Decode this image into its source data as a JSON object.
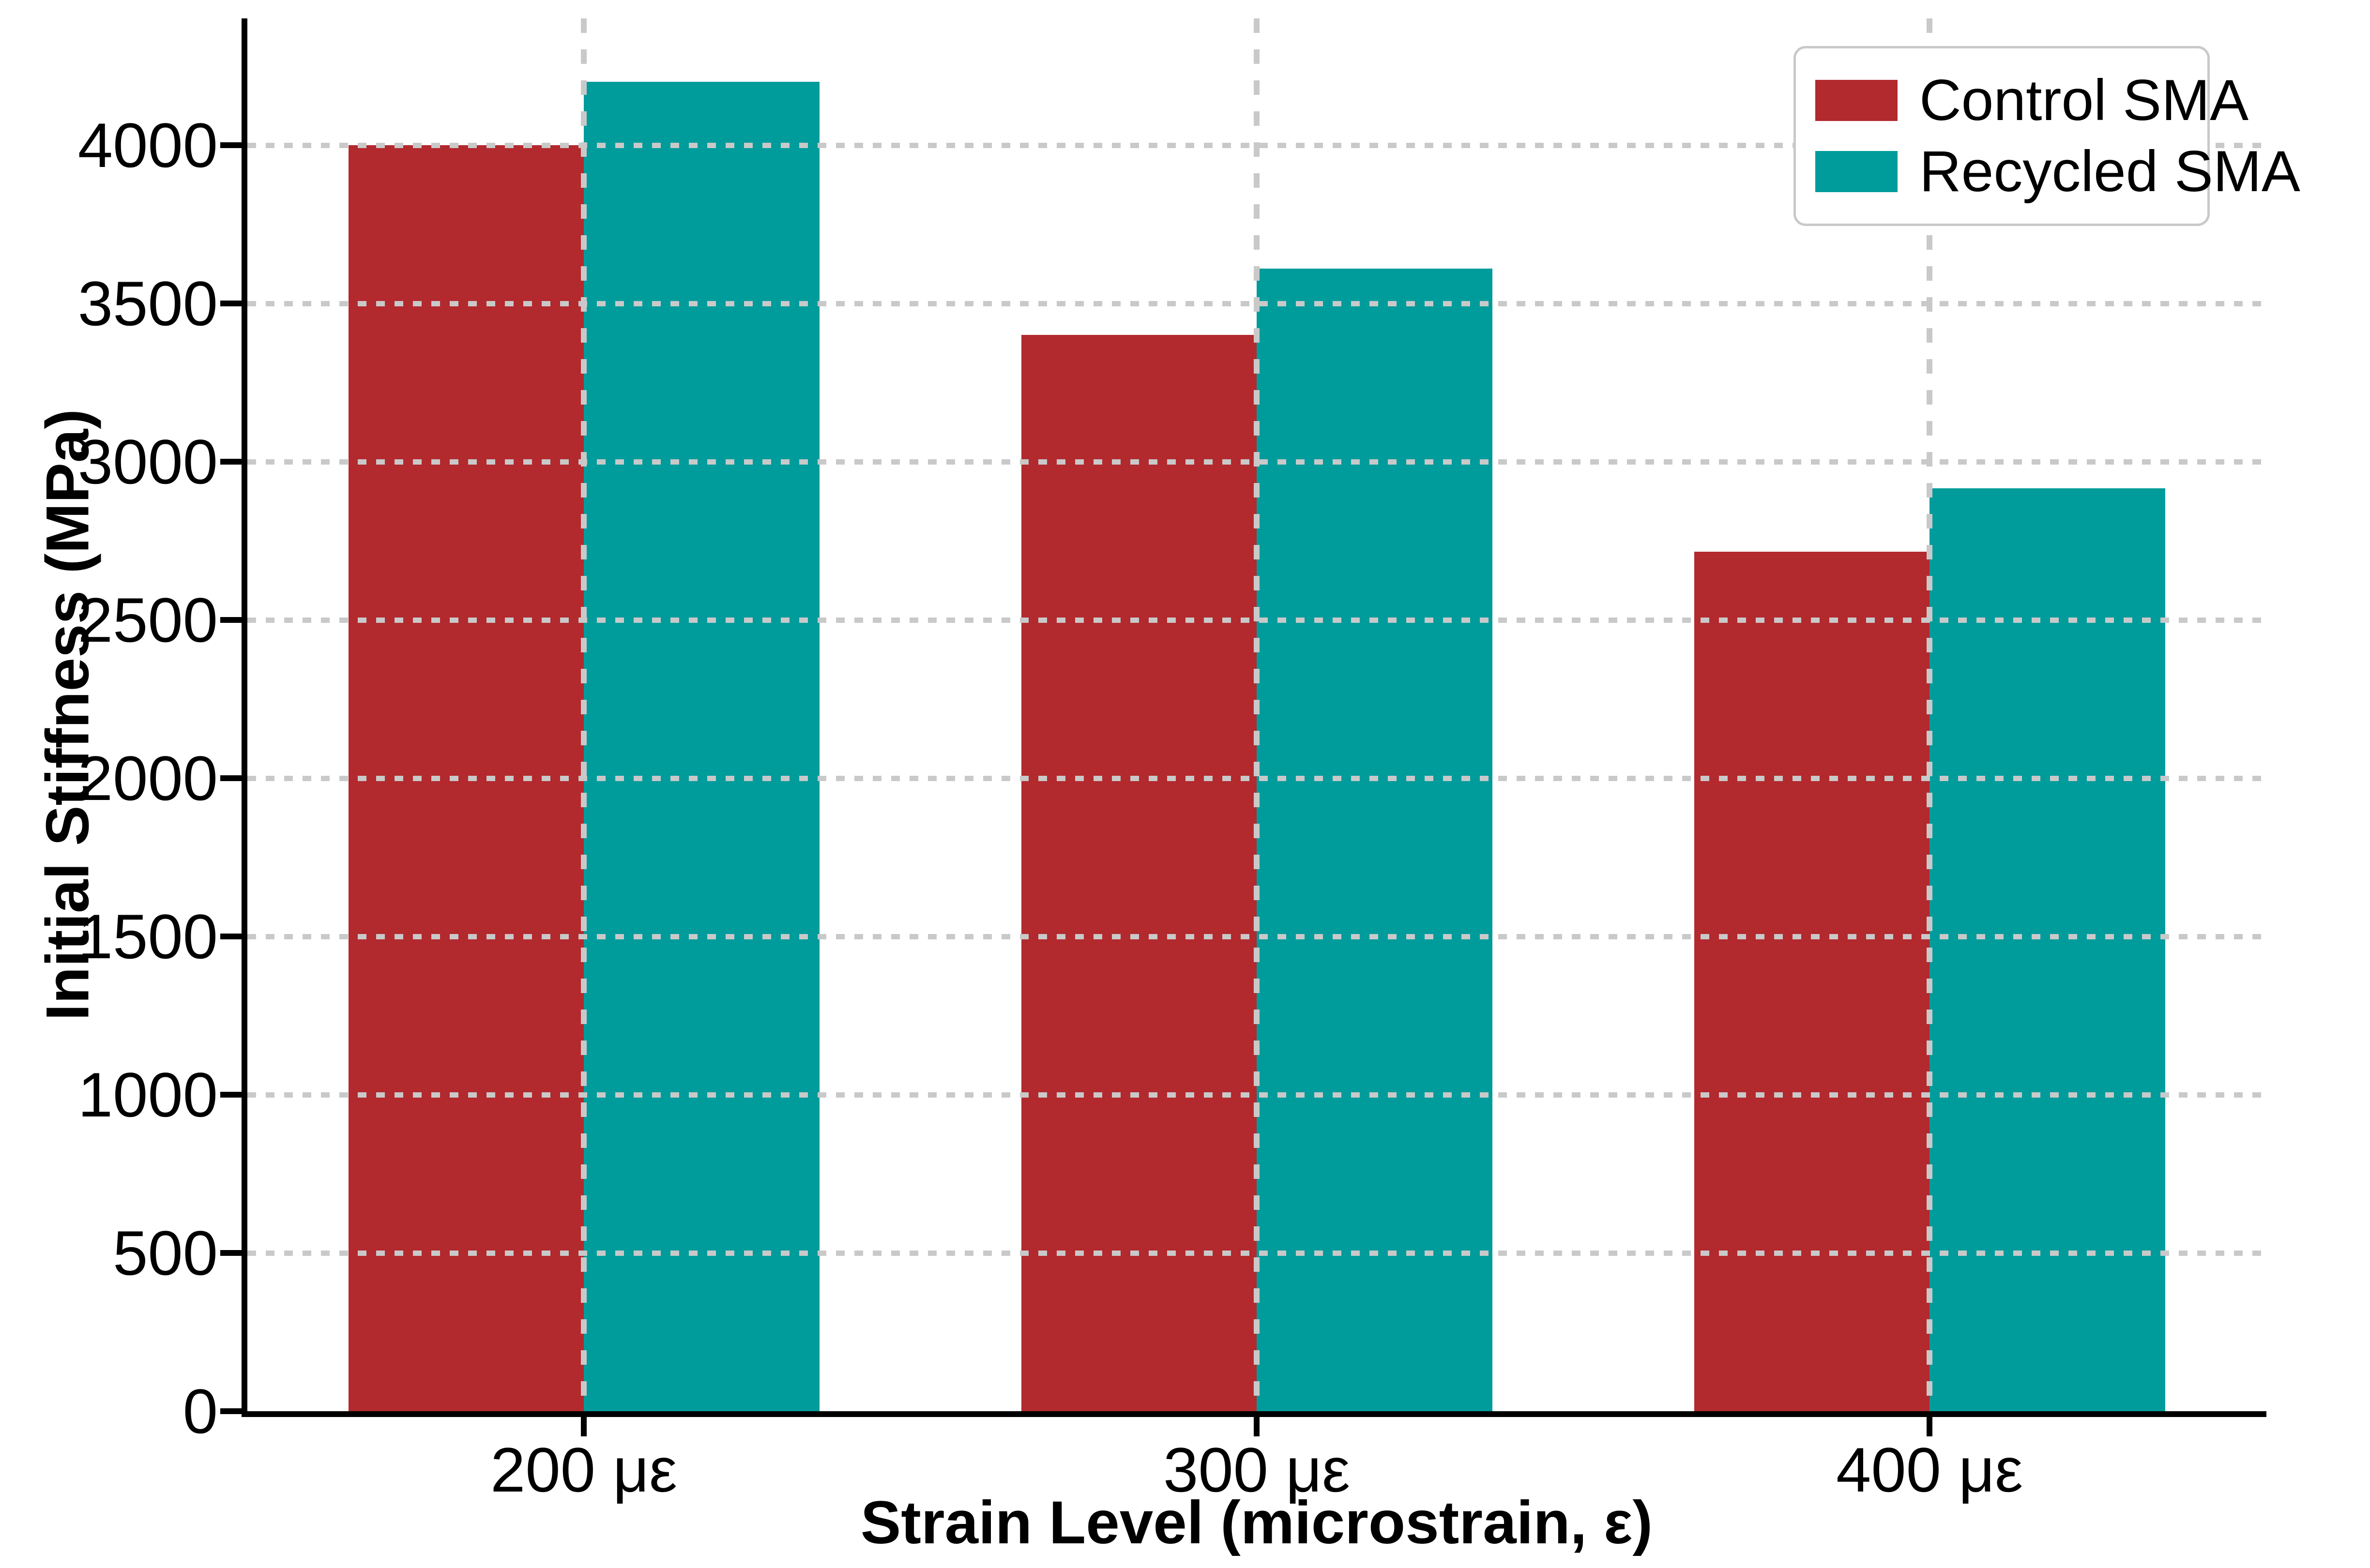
{
  "chart_data": {
    "type": "bar",
    "title": "",
    "categories": [
      "200 με",
      "300 με",
      "400 με"
    ],
    "series": [
      {
        "name": "Control SMA",
        "color": "#b2292e",
        "values": [
          4000,
          3400,
          2715
        ]
      },
      {
        "name": "Recycled SMA",
        "color": "#009b9b",
        "values": [
          4200,
          3610,
          2915
        ]
      }
    ],
    "xlabel": "Strain Level (microstrain, ε)",
    "ylabel": "Initial Stiffness (MPa)",
    "ylim": [
      0,
      4400
    ],
    "yticks": [
      0,
      500,
      1000,
      1500,
      2000,
      2500,
      3000,
      3500,
      4000
    ],
    "grid": "dashed",
    "grid_color": "#c9c9c9",
    "axis_color": "#000000",
    "background_color": "#ffffff",
    "legend_position": "upper right",
    "bar_width_fraction": 0.35
  }
}
